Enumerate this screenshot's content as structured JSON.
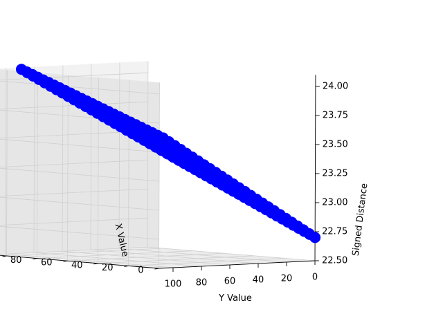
{
  "chart_data": {
    "type": "scatter",
    "projection": "3d",
    "title": "",
    "xlabel": "X Value",
    "ylabel": "Y Value",
    "zlabel": "Signed Distance",
    "xlim": [
      0,
      110
    ],
    "ylim": [
      0,
      110
    ],
    "zlim": [
      22.5,
      24.1
    ],
    "x_ticks": [
      "0",
      "20",
      "40",
      "60",
      "80",
      "100"
    ],
    "y_ticks": [
      "0",
      "20",
      "40",
      "60",
      "80",
      "100"
    ],
    "z_ticks": [
      "22.50",
      "22.75",
      "23.00",
      "23.25",
      "23.50",
      "23.75",
      "24.00"
    ],
    "grid": true,
    "legend": "none",
    "series": [
      {
        "color": "#0000ff",
        "x_range": [
          0,
          100
        ],
        "y_range": [
          0,
          100
        ],
        "surface_corners": [
          {
            "x": 0,
            "y": 0,
            "z": 22.7
          },
          {
            "x": 100,
            "y": 0,
            "z": 23.45
          },
          {
            "x": 0,
            "y": 100,
            "z": 23.45
          },
          {
            "x": 100,
            "y": 100,
            "z": 24.1
          }
        ]
      }
    ]
  }
}
